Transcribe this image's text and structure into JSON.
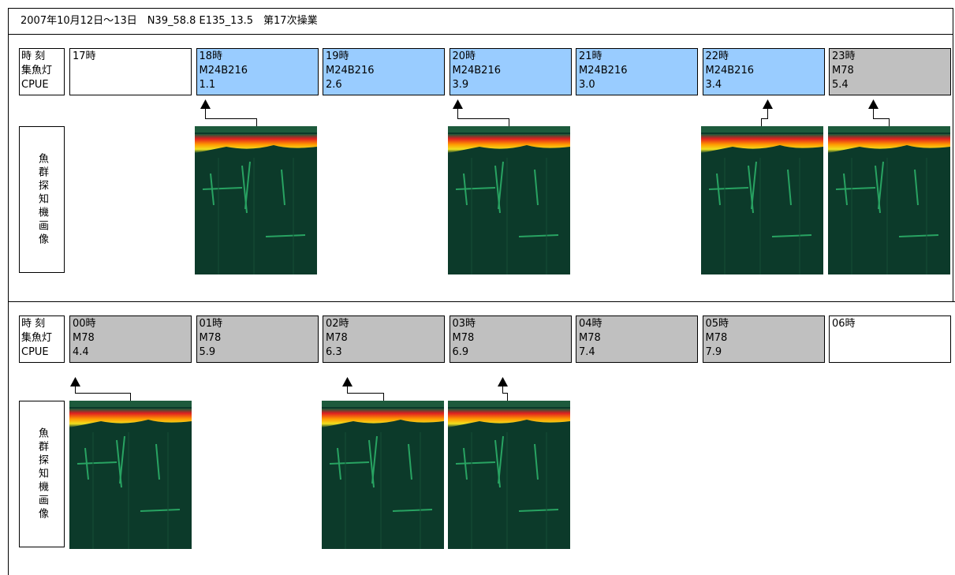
{
  "header": {
    "title": "2007年10月12日～13日　N39_58.8 E135_13.5　第17次操業"
  },
  "sections": [
    {
      "row_labels": [
        "時 刻",
        "集魚灯",
        "CPUE"
      ],
      "image_label": "魚群探知機画像",
      "cells": [
        {
          "time": "17時",
          "color": "#ffffff"
        },
        {
          "time": "18時",
          "lamp": "M24B216",
          "cpue": "1.1",
          "color": "#99ccff"
        },
        {
          "time": "19時",
          "lamp": "M24B216",
          "cpue": "2.6",
          "color": "#99ccff"
        },
        {
          "time": "20時",
          "lamp": "M24B216",
          "cpue": "3.9",
          "color": "#99ccff"
        },
        {
          "time": "21時",
          "lamp": "M24B216",
          "cpue": "3.0",
          "color": "#99ccff"
        },
        {
          "time": "22時",
          "lamp": "M24B216",
          "cpue": "3.4",
          "color": "#99ccff"
        },
        {
          "time": "23時",
          "lamp": "M78",
          "cpue": "5.4",
          "color": "#c0c0c0"
        }
      ]
    },
    {
      "row_labels": [
        "時 刻",
        "集魚灯",
        "CPUE"
      ],
      "image_label": "魚群探知機画像",
      "cells": [
        {
          "time": "00時",
          "lamp": "M78",
          "cpue": "4.4",
          "color": "#c0c0c0"
        },
        {
          "time": "01時",
          "lamp": "M78",
          "cpue": "5.9",
          "color": "#c0c0c0"
        },
        {
          "time": "02時",
          "lamp": "M78",
          "cpue": "6.3",
          "color": "#c0c0c0"
        },
        {
          "time": "03時",
          "lamp": "M78",
          "cpue": "6.9",
          "color": "#c0c0c0"
        },
        {
          "time": "04時",
          "lamp": "M78",
          "cpue": "7.4",
          "color": "#c0c0c0"
        },
        {
          "time": "05時",
          "lamp": "M78",
          "cpue": "7.9",
          "color": "#c0c0c0"
        },
        {
          "time": "06時",
          "color": "#ffffff"
        }
      ]
    }
  ]
}
